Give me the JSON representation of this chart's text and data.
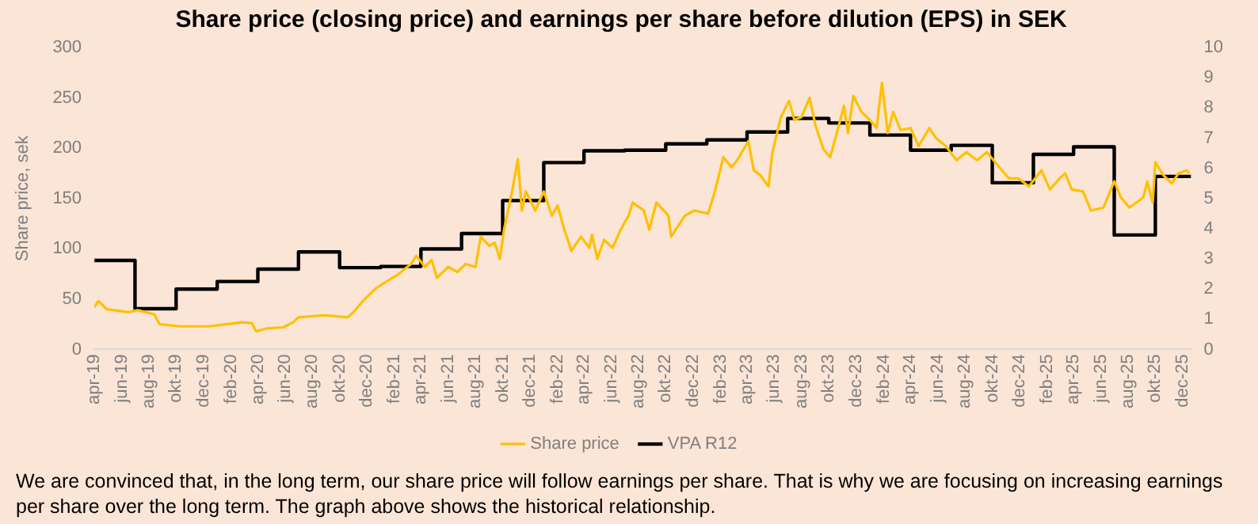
{
  "chart_data": {
    "type": "line",
    "title": "Share price (closing price) and earnings per share before dilution (EPS) in SEK",
    "ylabel": "Share price, sek",
    "annotations": [
      "We are convinced that, in the long term, our share price will follow earnings per share. That is why we are focusing on increasing earnings per share over the long term. The graph above shows the historical relationship."
    ],
    "xlim": [
      "2019-04-01",
      "2025-12-20"
    ],
    "xticks": [
      {
        "value": "2019-04",
        "label": "apr-19"
      },
      {
        "value": "2019-06",
        "label": "jun-19"
      },
      {
        "value": "2019-08",
        "label": "aug-19"
      },
      {
        "value": "2019-10",
        "label": "okt-19"
      },
      {
        "value": "2019-12",
        "label": "dec-19"
      },
      {
        "value": "2020-02",
        "label": "feb-20"
      },
      {
        "value": "2020-04",
        "label": "apr-20"
      },
      {
        "value": "2020-06",
        "label": "jun-20"
      },
      {
        "value": "2020-08",
        "label": "aug-20"
      },
      {
        "value": "2020-10",
        "label": "okt-20"
      },
      {
        "value": "2020-12",
        "label": "dec-20"
      },
      {
        "value": "2021-02",
        "label": "feb-21"
      },
      {
        "value": "2021-04",
        "label": "apr-21"
      },
      {
        "value": "2021-06",
        "label": "jun-21"
      },
      {
        "value": "2021-08",
        "label": "aug-21"
      },
      {
        "value": "2021-10",
        "label": "okt-21"
      },
      {
        "value": "2021-12",
        "label": "dec-21"
      },
      {
        "value": "2022-02",
        "label": "feb-22"
      },
      {
        "value": "2022-04",
        "label": "apr-22"
      },
      {
        "value": "2022-06",
        "label": "jun-22"
      },
      {
        "value": "2022-08",
        "label": "aug-22"
      },
      {
        "value": "2022-10",
        "label": "okt-22"
      },
      {
        "value": "2022-12",
        "label": "dec-22"
      },
      {
        "value": "2023-02",
        "label": "feb-23"
      },
      {
        "value": "2023-04",
        "label": "apr-23"
      },
      {
        "value": "2023-06",
        "label": "jun-23"
      },
      {
        "value": "2023-08",
        "label": "aug-23"
      },
      {
        "value": "2023-10",
        "label": "okt-23"
      },
      {
        "value": "2023-12",
        "label": "dec-23"
      },
      {
        "value": "2024-02",
        "label": "feb-24"
      },
      {
        "value": "2024-04",
        "label": "apr-24"
      },
      {
        "value": "2024-06",
        "label": "jun-24"
      },
      {
        "value": "2024-08",
        "label": "aug-24"
      },
      {
        "value": "2024-10",
        "label": "okt-24"
      },
      {
        "value": "2024-12",
        "label": "dec-24"
      },
      {
        "value": "2025-02",
        "label": "feb-25"
      },
      {
        "value": "2025-04",
        "label": "apr-25"
      },
      {
        "value": "2025-06",
        "label": "jun-25"
      },
      {
        "value": "2025-08",
        "label": "aug-25"
      },
      {
        "value": "2025-10",
        "label": "okt-25"
      },
      {
        "value": "2025-12",
        "label": "dec-25"
      }
    ],
    "ylim": [
      0,
      300
    ],
    "yticks": [
      0,
      50,
      100,
      150,
      200,
      250,
      300
    ],
    "y2lim": [
      0,
      10
    ],
    "y2ticks": [
      0,
      1,
      2,
      3,
      4,
      5,
      6,
      7,
      8,
      9,
      10
    ],
    "grid": false,
    "legend": "bottom",
    "marker": "none",
    "line_style": "solid",
    "series": [
      {
        "name": "Share price",
        "color": "#ffc000",
        "x": [
          "2019-04-01",
          "2019-04-10",
          "2019-04-29",
          "2019-06-16",
          "2019-07-07",
          "2019-08-13",
          "2019-08-25",
          "2019-10-10",
          "2019-12-16",
          "2020-01-22",
          "2020-02-25",
          "2020-03-19",
          "2020-03-28",
          "2020-04-22",
          "2020-05-28",
          "2020-06-19",
          "2020-07-01",
          "2020-08-28",
          "2020-10-19",
          "2020-11-01",
          "2020-11-22",
          "2020-12-22",
          "2021-01-19",
          "2021-02-07",
          "2021-03-10",
          "2021-03-22",
          "2021-04-10",
          "2021-04-25",
          "2021-05-07",
          "2021-06-01",
          "2021-06-22",
          "2021-07-10",
          "2021-08-01",
          "2021-08-13",
          "2021-09-01",
          "2021-09-13",
          "2021-09-25",
          "2021-10-04",
          "2021-10-22",
          "2021-11-04",
          "2021-11-13",
          "2021-11-22",
          "2021-12-13",
          "2022-01-01",
          "2022-01-19",
          "2022-02-01",
          "2022-02-16",
          "2022-03-04",
          "2022-03-25",
          "2022-04-13",
          "2022-04-19",
          "2022-05-01",
          "2022-05-16",
          "2022-06-04",
          "2022-06-22",
          "2022-07-10",
          "2022-07-19",
          "2022-08-13",
          "2022-08-25",
          "2022-09-10",
          "2022-10-07",
          "2022-10-13",
          "2022-11-13",
          "2022-12-04",
          "2023-01-04",
          "2023-01-19",
          "2023-02-07",
          "2023-02-25",
          "2023-03-10",
          "2023-04-04",
          "2023-04-16",
          "2023-05-01",
          "2023-05-19",
          "2023-05-28",
          "2023-06-16",
          "2023-07-04",
          "2023-07-16",
          "2023-08-01",
          "2023-08-19",
          "2023-09-01",
          "2023-09-19",
          "2023-10-04",
          "2023-10-16",
          "2023-11-04",
          "2023-11-13",
          "2023-11-25",
          "2023-12-13",
          "2024-01-01",
          "2024-01-16",
          "2024-01-28",
          "2024-02-10",
          "2024-02-22",
          "2024-03-10",
          "2024-04-01",
          "2024-04-19",
          "2024-05-13",
          "2024-05-28",
          "2024-06-19",
          "2024-07-13",
          "2024-08-04",
          "2024-08-28",
          "2024-09-19",
          "2024-10-13",
          "2024-11-07",
          "2024-11-28",
          "2024-12-22",
          "2025-01-19",
          "2025-02-07",
          "2025-03-01",
          "2025-03-13",
          "2025-03-28",
          "2025-04-22",
          "2025-05-10",
          "2025-06-07",
          "2025-07-01",
          "2025-07-16",
          "2025-08-04",
          "2025-09-04",
          "2025-09-13",
          "2025-09-25",
          "2025-10-01",
          "2025-10-19",
          "2025-11-07",
          "2025-11-22",
          "2025-12-10",
          "2025-12-16"
        ],
        "values": [
          42,
          48,
          40,
          37,
          39,
          35,
          25,
          23,
          23,
          25,
          27,
          26,
          18,
          21,
          22,
          27,
          32,
          34,
          32,
          37,
          48,
          61,
          69,
          74,
          85,
          93,
          82,
          89,
          71,
          82,
          77,
          85,
          82,
          112,
          103,
          106,
          90,
          119,
          157,
          189,
          138,
          157,
          138,
          157,
          133,
          143,
          119,
          98,
          112,
          101,
          114,
          90,
          109,
          101,
          119,
          133,
          146,
          138,
          119,
          146,
          133,
          112,
          133,
          138,
          135,
          157,
          191,
          181,
          188,
          207,
          178,
          173,
          162,
          196,
          231,
          247,
          228,
          231,
          250,
          223,
          199,
          191,
          210,
          242,
          215,
          252,
          236,
          228,
          220,
          265,
          215,
          236,
          218,
          220,
          202,
          220,
          210,
          202,
          188,
          196,
          188,
          196,
          183,
          170,
          170,
          162,
          178,
          159,
          170,
          175,
          159,
          157,
          138,
          141,
          167,
          151,
          141,
          151,
          167,
          146,
          186,
          173,
          165,
          175,
          178,
          175
        ]
      },
      {
        "name": "VPA R12",
        "color": "#000000",
        "type": "step",
        "axis": "y2",
        "x": [
          "2019-04-01",
          "2019-07-01",
          "2019-10-01",
          "2020-01-01",
          "2020-04-01",
          "2020-07-01",
          "2020-10-01",
          "2021-01-01",
          "2021-04-01",
          "2021-07-01",
          "2021-10-01",
          "2022-01-01",
          "2022-04-01",
          "2022-07-01",
          "2022-10-01",
          "2023-01-01",
          "2023-04-01",
          "2023-07-01",
          "2023-10-01",
          "2024-01-01",
          "2024-04-01",
          "2024-07-01",
          "2024-10-01",
          "2025-01-01",
          "2025-04-01",
          "2025-07-01",
          "2025-10-01",
          "2025-12-20"
        ],
        "values": [
          2.95,
          1.35,
          2.0,
          2.25,
          2.66,
          3.23,
          2.71,
          2.75,
          3.33,
          3.84,
          4.93,
          6.19,
          6.58,
          6.6,
          6.81,
          6.94,
          7.2,
          7.65,
          7.5,
          7.1,
          6.6,
          6.76,
          5.52,
          6.46,
          6.71,
          3.79,
          5.73,
          5.73
        ]
      }
    ]
  }
}
